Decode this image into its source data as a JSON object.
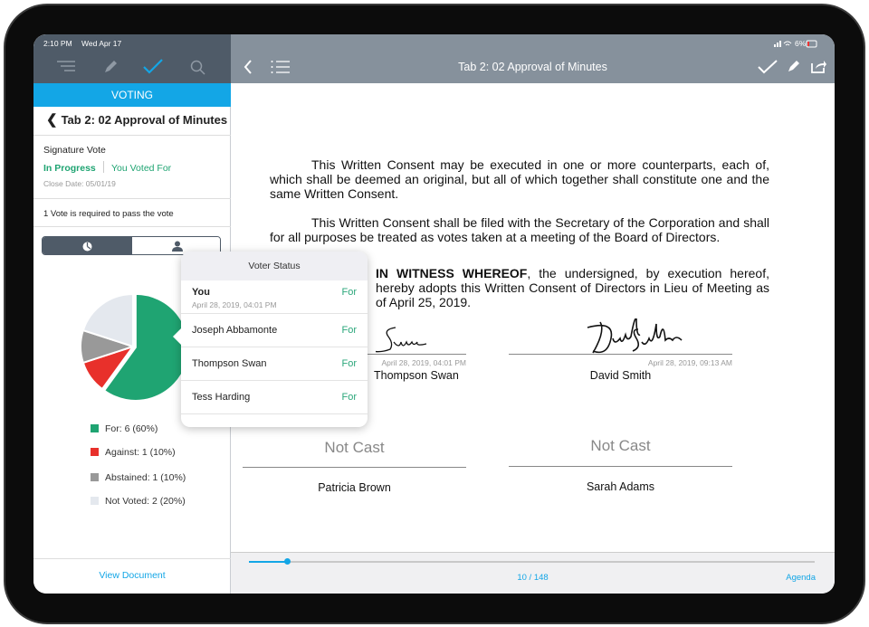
{
  "status_bar": {
    "time": "2:10 PM",
    "date": "Wed Apr 17",
    "battery": "6%"
  },
  "sidebar": {
    "toolbar_icons": [
      "filter-list-icon",
      "pencil-icon",
      "checkmark-icon",
      "search-icon"
    ],
    "section_label": "VOTING",
    "back_title": "Tab 2: 02 Approval of Minutes",
    "vote_type": "Signature Vote",
    "vote_status": "In Progress",
    "your_vote": "You Voted For",
    "close_date": "Close Date: 05/01/19",
    "requirement": "1 Vote is required to pass the vote",
    "view_tabs": [
      "pie-chart-icon",
      "person-icon"
    ],
    "view_document": "View Document"
  },
  "chart_data": {
    "type": "pie",
    "slices": [
      {
        "label": "For: 6 (60%)",
        "value": 6,
        "color": "#1fa472"
      },
      {
        "label": "Against: 1 (10%)",
        "value": 1,
        "color": "#e8302b"
      },
      {
        "label": "Abstained: 1 (10%)",
        "value": 1,
        "color": "#999999"
      },
      {
        "label": "Not Voted: 2 (20%)",
        "value": 2,
        "color": "#e4e8ee"
      }
    ]
  },
  "header": {
    "title": "Tab 2: 02 Approval of Minutes"
  },
  "document": {
    "paragraphs": [
      "This Written Consent may be executed in one or more counterparts, each of, which shall be deemed an original, but all of which together shall constitute one and the same Written Consent.",
      "This Written Consent shall be filed with the Secretary of the Corporation and shall for all purposes be treated as votes taken at a meeting of the Board of Directors."
    ],
    "witness_bold": "IN WITNESS WHEREOF",
    "witness_rest": ", the undersigned, by execution hereof, hereby adopts this Written Consent of Directors in Lieu of Meeting as of April 25, 2019.",
    "signatures": [
      {
        "name": "Thompson Swan",
        "date": "April 28, 2019, 04:01 PM",
        "status": ""
      },
      {
        "name": "David Smith",
        "date": "April 28, 2019, 09:13 AM",
        "status": ""
      },
      {
        "name": "Patricia Brown",
        "date": "",
        "status": "Not Cast"
      },
      {
        "name": "Sarah Adams",
        "date": "",
        "status": "Not Cast"
      }
    ]
  },
  "popover": {
    "title": "Voter Status",
    "voters": [
      {
        "name": "You",
        "date": "April 28, 2019, 04:01 PM",
        "vote": "For"
      },
      {
        "name": "Joseph Abbamonte",
        "vote": "For"
      },
      {
        "name": "Thompson Swan",
        "vote": "For"
      },
      {
        "name": "Tess Harding",
        "vote": "For"
      }
    ]
  },
  "footer": {
    "page": "10 / 148",
    "current_page": 10,
    "total_pages": 148,
    "agenda": "Agenda"
  },
  "colors": {
    "accent": "#13a6e6",
    "green": "#1fa472",
    "toolbar": "#86919c",
    "sidebar_toolbar": "#4f5b68"
  }
}
